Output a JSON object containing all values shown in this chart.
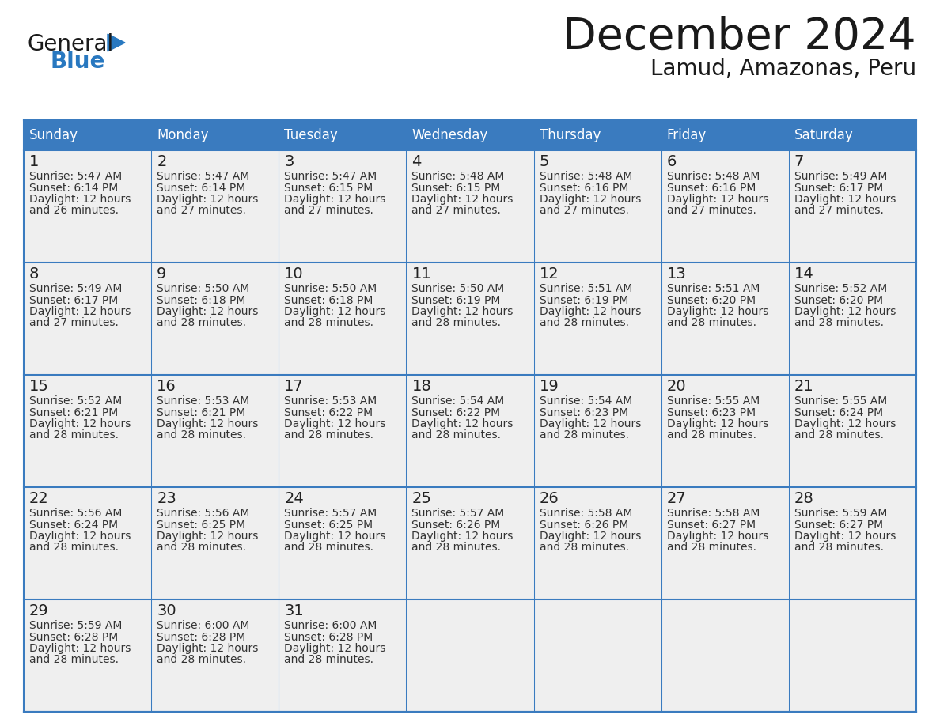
{
  "title": "December 2024",
  "subtitle": "Lamud, Amazonas, Peru",
  "header_bg_color": "#3a7bbf",
  "header_text_color": "#ffffff",
  "cell_bg_color": "#efefef",
  "border_color": "#3a7bbf",
  "separator_color": "#3a7bbf",
  "text_color": "#333333",
  "days_of_week": [
    "Sunday",
    "Monday",
    "Tuesday",
    "Wednesday",
    "Thursday",
    "Friday",
    "Saturday"
  ],
  "calendar_data": [
    [
      {
        "day": "1",
        "sunrise": "5:47 AM",
        "sunset": "6:14 PM",
        "daylight_hours": "12 hours",
        "daylight_mins": "and 26 minutes."
      },
      {
        "day": "2",
        "sunrise": "5:47 AM",
        "sunset": "6:14 PM",
        "daylight_hours": "12 hours",
        "daylight_mins": "and 27 minutes."
      },
      {
        "day": "3",
        "sunrise": "5:47 AM",
        "sunset": "6:15 PM",
        "daylight_hours": "12 hours",
        "daylight_mins": "and 27 minutes."
      },
      {
        "day": "4",
        "sunrise": "5:48 AM",
        "sunset": "6:15 PM",
        "daylight_hours": "12 hours",
        "daylight_mins": "and 27 minutes."
      },
      {
        "day": "5",
        "sunrise": "5:48 AM",
        "sunset": "6:16 PM",
        "daylight_hours": "12 hours",
        "daylight_mins": "and 27 minutes."
      },
      {
        "day": "6",
        "sunrise": "5:48 AM",
        "sunset": "6:16 PM",
        "daylight_hours": "12 hours",
        "daylight_mins": "and 27 minutes."
      },
      {
        "day": "7",
        "sunrise": "5:49 AM",
        "sunset": "6:17 PM",
        "daylight_hours": "12 hours",
        "daylight_mins": "and 27 minutes."
      }
    ],
    [
      {
        "day": "8",
        "sunrise": "5:49 AM",
        "sunset": "6:17 PM",
        "daylight_hours": "12 hours",
        "daylight_mins": "and 27 minutes."
      },
      {
        "day": "9",
        "sunrise": "5:50 AM",
        "sunset": "6:18 PM",
        "daylight_hours": "12 hours",
        "daylight_mins": "and 28 minutes."
      },
      {
        "day": "10",
        "sunrise": "5:50 AM",
        "sunset": "6:18 PM",
        "daylight_hours": "12 hours",
        "daylight_mins": "and 28 minutes."
      },
      {
        "day": "11",
        "sunrise": "5:50 AM",
        "sunset": "6:19 PM",
        "daylight_hours": "12 hours",
        "daylight_mins": "and 28 minutes."
      },
      {
        "day": "12",
        "sunrise": "5:51 AM",
        "sunset": "6:19 PM",
        "daylight_hours": "12 hours",
        "daylight_mins": "and 28 minutes."
      },
      {
        "day": "13",
        "sunrise": "5:51 AM",
        "sunset": "6:20 PM",
        "daylight_hours": "12 hours",
        "daylight_mins": "and 28 minutes."
      },
      {
        "day": "14",
        "sunrise": "5:52 AM",
        "sunset": "6:20 PM",
        "daylight_hours": "12 hours",
        "daylight_mins": "and 28 minutes."
      }
    ],
    [
      {
        "day": "15",
        "sunrise": "5:52 AM",
        "sunset": "6:21 PM",
        "daylight_hours": "12 hours",
        "daylight_mins": "and 28 minutes."
      },
      {
        "day": "16",
        "sunrise": "5:53 AM",
        "sunset": "6:21 PM",
        "daylight_hours": "12 hours",
        "daylight_mins": "and 28 minutes."
      },
      {
        "day": "17",
        "sunrise": "5:53 AM",
        "sunset": "6:22 PM",
        "daylight_hours": "12 hours",
        "daylight_mins": "and 28 minutes."
      },
      {
        "day": "18",
        "sunrise": "5:54 AM",
        "sunset": "6:22 PM",
        "daylight_hours": "12 hours",
        "daylight_mins": "and 28 minutes."
      },
      {
        "day": "19",
        "sunrise": "5:54 AM",
        "sunset": "6:23 PM",
        "daylight_hours": "12 hours",
        "daylight_mins": "and 28 minutes."
      },
      {
        "day": "20",
        "sunrise": "5:55 AM",
        "sunset": "6:23 PM",
        "daylight_hours": "12 hours",
        "daylight_mins": "and 28 minutes."
      },
      {
        "day": "21",
        "sunrise": "5:55 AM",
        "sunset": "6:24 PM",
        "daylight_hours": "12 hours",
        "daylight_mins": "and 28 minutes."
      }
    ],
    [
      {
        "day": "22",
        "sunrise": "5:56 AM",
        "sunset": "6:24 PM",
        "daylight_hours": "12 hours",
        "daylight_mins": "and 28 minutes."
      },
      {
        "day": "23",
        "sunrise": "5:56 AM",
        "sunset": "6:25 PM",
        "daylight_hours": "12 hours",
        "daylight_mins": "and 28 minutes."
      },
      {
        "day": "24",
        "sunrise": "5:57 AM",
        "sunset": "6:25 PM",
        "daylight_hours": "12 hours",
        "daylight_mins": "and 28 minutes."
      },
      {
        "day": "25",
        "sunrise": "5:57 AM",
        "sunset": "6:26 PM",
        "daylight_hours": "12 hours",
        "daylight_mins": "and 28 minutes."
      },
      {
        "day": "26",
        "sunrise": "5:58 AM",
        "sunset": "6:26 PM",
        "daylight_hours": "12 hours",
        "daylight_mins": "and 28 minutes."
      },
      {
        "day": "27",
        "sunrise": "5:58 AM",
        "sunset": "6:27 PM",
        "daylight_hours": "12 hours",
        "daylight_mins": "and 28 minutes."
      },
      {
        "day": "28",
        "sunrise": "5:59 AM",
        "sunset": "6:27 PM",
        "daylight_hours": "12 hours",
        "daylight_mins": "and 28 minutes."
      }
    ],
    [
      {
        "day": "29",
        "sunrise": "5:59 AM",
        "sunset": "6:28 PM",
        "daylight_hours": "12 hours",
        "daylight_mins": "and 28 minutes."
      },
      {
        "day": "30",
        "sunrise": "6:00 AM",
        "sunset": "6:28 PM",
        "daylight_hours": "12 hours",
        "daylight_mins": "and 28 minutes."
      },
      {
        "day": "31",
        "sunrise": "6:00 AM",
        "sunset": "6:28 PM",
        "daylight_hours": "12 hours",
        "daylight_mins": "and 28 minutes."
      },
      null,
      null,
      null,
      null
    ]
  ],
  "logo_text_general": "General",
  "logo_text_blue": "Blue",
  "logo_color_general": "#1a1a1a",
  "logo_color_blue": "#2878c0",
  "logo_triangle_color": "#2878c0",
  "title_fontsize": 40,
  "subtitle_fontsize": 20,
  "header_fontsize": 12,
  "day_num_fontsize": 14,
  "cell_text_fontsize": 10
}
